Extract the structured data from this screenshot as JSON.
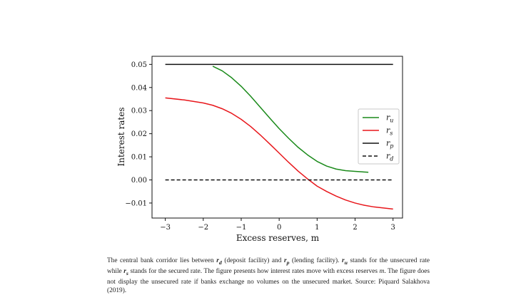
{
  "chart_data": {
    "type": "line",
    "xlabel": "Excess reserves, m",
    "ylabel": "Interest rates",
    "xlim": [
      -3.35,
      3.25
    ],
    "ylim": [
      -0.0165,
      0.0535
    ],
    "xticks": [
      -3,
      -2,
      -1,
      0,
      1,
      2,
      3
    ],
    "xtick_labels": [
      "−3",
      "−2",
      "−1",
      "0",
      "1",
      "2",
      "3"
    ],
    "yticks": [
      -0.01,
      0.0,
      0.01,
      0.02,
      0.03,
      0.04,
      0.05
    ],
    "ytick_labels": [
      "−0.01",
      "0.00",
      "0.01",
      "0.02",
      "0.03",
      "0.04",
      "0.05"
    ],
    "legend_position": "center-right",
    "series": [
      {
        "name": "r_u",
        "legend": "r",
        "sub": "u",
        "color": "#1a8a1a",
        "dash": "",
        "x": [
          -1.75,
          -1.5,
          -1.25,
          -1.0,
          -0.75,
          -0.5,
          -0.25,
          0.0,
          0.25,
          0.5,
          0.75,
          1.0,
          1.25,
          1.5,
          1.75,
          2.0,
          2.35
        ],
        "y": [
          0.0492,
          0.0472,
          0.0442,
          0.0405,
          0.0362,
          0.0315,
          0.0268,
          0.0222,
          0.018,
          0.0141,
          0.0108,
          0.008,
          0.006,
          0.0047,
          0.004,
          0.0037,
          0.0033
        ]
      },
      {
        "name": "r_s",
        "legend": "r",
        "sub": "s",
        "color": "#e8161b",
        "dash": "",
        "x": [
          -3.0,
          -2.5,
          -2.0,
          -1.75,
          -1.5,
          -1.25,
          -1.0,
          -0.75,
          -0.5,
          -0.25,
          0.0,
          0.25,
          0.5,
          0.75,
          1.0,
          1.25,
          1.5,
          1.75,
          2.0,
          2.25,
          2.5,
          3.0
        ],
        "y": [
          0.0355,
          0.0346,
          0.0333,
          0.0323,
          0.0308,
          0.0288,
          0.0262,
          0.0231,
          0.0195,
          0.0156,
          0.0116,
          0.0076,
          0.0038,
          0.0004,
          -0.0027,
          -0.005,
          -0.007,
          -0.0087,
          -0.01,
          -0.011,
          -0.0117,
          -0.0126
        ]
      },
      {
        "name": "r_p",
        "legend": "r",
        "sub": "p",
        "color": "#111111",
        "dash": "",
        "x": [
          -3.0,
          3.0
        ],
        "y": [
          0.05,
          0.05
        ]
      },
      {
        "name": "r_d",
        "legend": "r",
        "sub": "d",
        "color": "#111111",
        "dash": "5,3",
        "x": [
          -3.0,
          3.0
        ],
        "y": [
          0.0,
          0.0
        ]
      }
    ]
  },
  "caption": {
    "part1": "The central bank corridor lies between ",
    "rd": "r",
    "rd_sub": "d",
    "part2": " (deposit facility) and ",
    "rp": "r",
    "rp_sub": "p",
    "part3": " (lending facility). ",
    "ru": "r",
    "ru_sub": "u",
    "part4": " stands for the unsecured rate while ",
    "rs": "r",
    "rs_sub": "s",
    "part5": " stands for the secured rate. The figure presents how interest rates move with excess reserves ",
    "m": "m",
    "part6": ". The figure does not display the unsecured rate if banks exchange no volumes on the unsecured market. Source: Piquard Salakhova (2019)."
  }
}
